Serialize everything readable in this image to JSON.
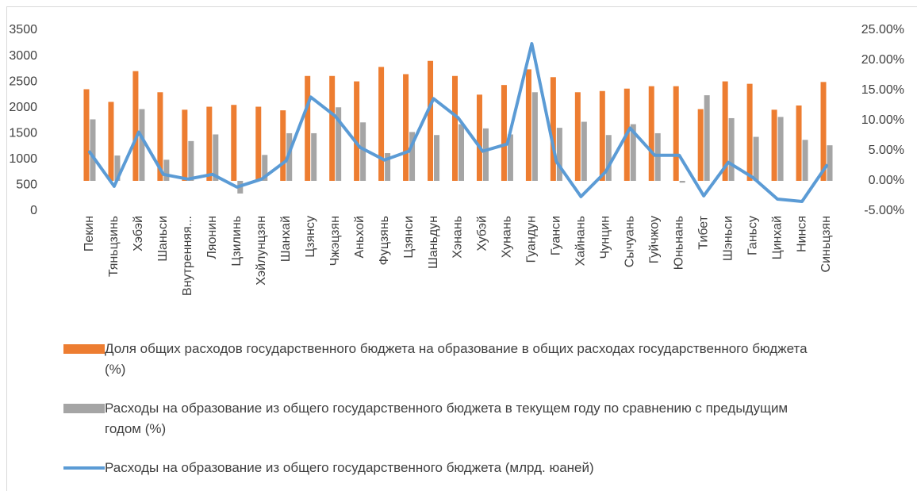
{
  "chart_data": {
    "type": "bar_line",
    "categories": [
      "Пекин",
      "Тяньцзинь",
      "Хэбэй",
      "Шаньси",
      "Внутренняя...",
      "Ляонин",
      "Цзилинь",
      "Хэйлунцзян",
      "Шанхай",
      "Цзянсу",
      "Чжэцзян",
      "Аньхой",
      "Фуцзянь",
      "Цзянси",
      "Шаньдун",
      "Хэнань",
      "Хубэй",
      "Хунань",
      "Гуандун",
      "Гуанси",
      "Хайнань",
      "Чунцин",
      "Сычуань",
      "Гуйчжоу",
      "Юньнань",
      "Тибет",
      "Шэньси",
      "Ганьсу",
      "Цинхай",
      "Нинся",
      "Синьцзян"
    ],
    "series": [
      {
        "name": "Доля общих расходов государственного бюджета на образование в общих расходах государственного бюджета (%)",
        "color": "#ed7d31",
        "axis": "y2",
        "kind": "bar",
        "values": [
          15.2,
          13.1,
          18.2,
          14.7,
          11.8,
          12.3,
          12.6,
          12.3,
          11.7,
          17.4,
          17.4,
          16.5,
          18.9,
          17.7,
          19.9,
          17.4,
          14.3,
          15.9,
          18.5,
          17.2,
          14.7,
          14.9,
          15.3,
          15.7,
          15.7,
          11.9,
          16.5,
          16.1,
          11.8,
          12.5,
          16.4
        ]
      },
      {
        "name": "Расходы на образование из общего государственного бюджета в текущем году по сравнению с предыдущим годом (%)",
        "color": "#a5a5a5",
        "axis": "y2",
        "kind": "bar",
        "values": [
          10.2,
          4.2,
          11.9,
          3.5,
          6.6,
          7.7,
          -2.1,
          4.3,
          7.9,
          7.9,
          12.2,
          9.7,
          4.6,
          8.1,
          7.6,
          9.4,
          8.7,
          7.7,
          14.7,
          8.8,
          9.8,
          7.6,
          9.4,
          7.9,
          -0.3,
          14.2,
          10.4,
          7.3,
          10.6,
          6.8,
          5.9
        ]
      },
      {
        "name": "Расходы на образование из общего государственного бюджета (млрд. юаней)",
        "color": "#5b9bd5",
        "kind": "line",
        "values": [
          1141,
          478,
          1527,
          709,
          617,
          709,
          463,
          617,
          971,
          2205,
          1835,
          1234,
          987,
          1157,
          2174,
          1804,
          1157,
          1295,
          3238,
          956,
          278,
          756,
          1604,
          1079,
          1079,
          293,
          941,
          648,
          231,
          185,
          879
        ]
      }
    ],
    "ylim": [
      0,
      3500
    ],
    "yticks": [
      0,
      500,
      1000,
      1500,
      2000,
      2500,
      3000,
      3500
    ],
    "y2lim": [
      -5,
      25
    ],
    "y2ticks": [
      {
        "value": -5,
        "label": "-5.00%"
      },
      {
        "value": 0,
        "label": "0.00%"
      },
      {
        "value": 5,
        "label": "5.00%"
      },
      {
        "value": 10,
        "label": "10.00%"
      },
      {
        "value": 15,
        "label": "15.00%"
      },
      {
        "value": 20,
        "label": "20.00%"
      },
      {
        "value": 25,
        "label": "25.00%"
      }
    ],
    "legend": "bottom"
  }
}
